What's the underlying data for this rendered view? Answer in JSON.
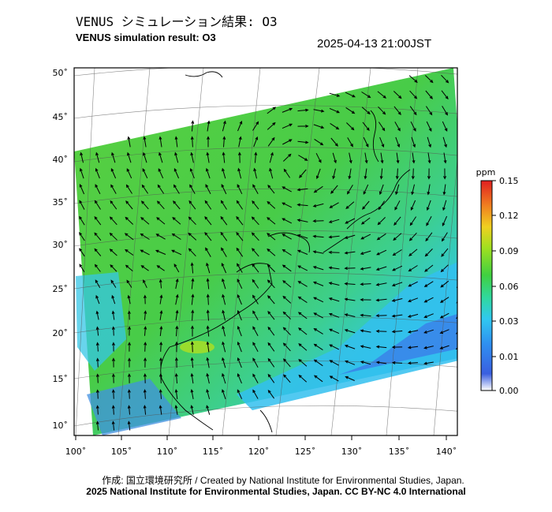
{
  "header": {
    "title_jp": "VENUS シミュレーション結果: O3",
    "title_en": "VENUS simulation result: O3",
    "timestamp": "2025-04-13 21:00JST"
  },
  "map": {
    "lat_ticks": [
      "50˚",
      "45˚",
      "40˚",
      "35˚",
      "30˚",
      "25˚",
      "20˚",
      "15˚",
      "10˚"
    ],
    "lon_ticks": [
      "100˚",
      "105˚",
      "110˚",
      "115˚",
      "120˚",
      "125˚",
      "130˚",
      "135˚",
      "140˚"
    ],
    "land_color": "#ffffff",
    "coast_color": "#000000"
  },
  "colorbar": {
    "unit": "ppm",
    "ticks": [
      "0.15",
      "0.12",
      "0.09",
      "0.06",
      "0.03",
      "0.01",
      "0.00"
    ],
    "colors": [
      "#ffffff",
      "#3060e0",
      "#30c0f0",
      "#30d090",
      "#50d030",
      "#90e020",
      "#f0c020",
      "#f07020",
      "#e02020"
    ]
  },
  "credits": {
    "line1": "作成: 国立環境研究所 / Created by National Institute for Environmental Studies, Japan.",
    "line2": "2025 National Institute for Environmental Studies, Japan. CC BY-NC 4.0 International"
  }
}
